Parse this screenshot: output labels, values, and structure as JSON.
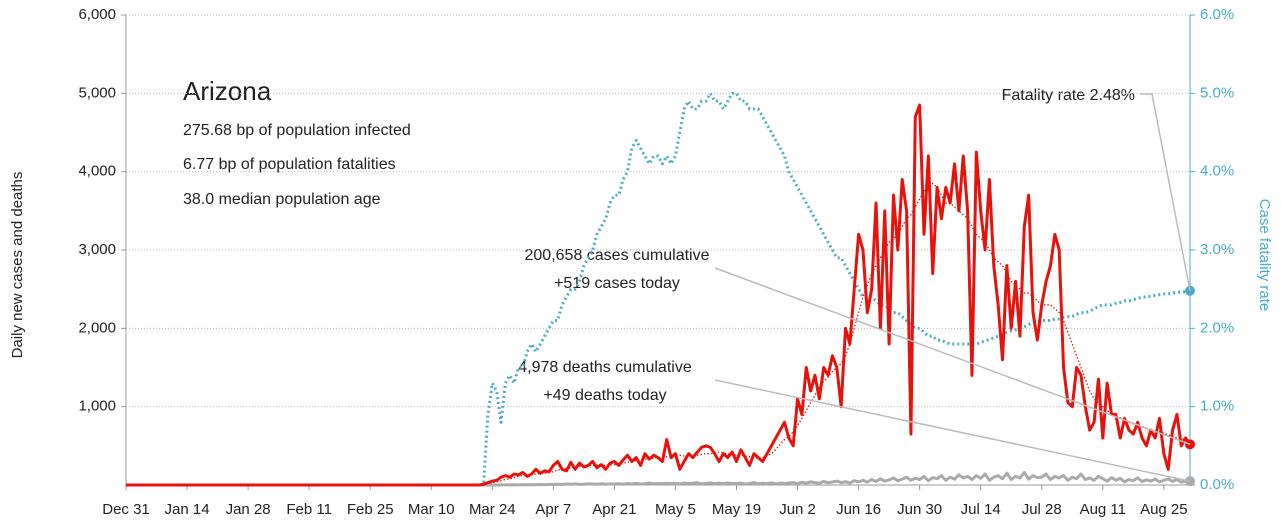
{
  "chart_data": {
    "type": "line",
    "ylabel": "Daily new cases and deaths",
    "y2label": "Case fatality rate",
    "info": {
      "title": "Arizona",
      "lines": [
        "275.68 bp of population infected",
        "6.77 bp of population fatalities",
        "38.0 median population age"
      ]
    },
    "annotations": {
      "cases": [
        "200,658 cases cumulative",
        "+519 cases today"
      ],
      "deaths": [
        "4,978 deaths cumulative",
        "+49 deaths today"
      ],
      "rate": "Fatality rate 2.48%"
    },
    "grid": true,
    "ylim": [
      0,
      6000
    ],
    "yticks": [
      {
        "value": 1000,
        "label": "1,000"
      },
      {
        "value": 2000,
        "label": "2,000"
      },
      {
        "value": 3000,
        "label": "3,000"
      },
      {
        "value": 4000,
        "label": "4,000"
      },
      {
        "value": 5000,
        "label": "5,000"
      },
      {
        "value": 6000,
        "label": "6,000"
      }
    ],
    "y2lim": [
      0,
      6
    ],
    "y2ticks": [
      {
        "value": 0,
        "label": "0.0%"
      },
      {
        "value": 1,
        "label": "1.0%"
      },
      {
        "value": 2,
        "label": "2.0%"
      },
      {
        "value": 3,
        "label": "3.0%"
      },
      {
        "value": 4,
        "label": "4.0%"
      },
      {
        "value": 5,
        "label": "5.0%"
      },
      {
        "value": 6,
        "label": "6.0%"
      }
    ],
    "y2color": "#4bacc6",
    "categories": [
      "Dec 31",
      null,
      null,
      null,
      null,
      null,
      null,
      null,
      null,
      null,
      null,
      null,
      null,
      null,
      "Jan 14",
      null,
      null,
      null,
      null,
      null,
      null,
      null,
      null,
      null,
      null,
      null,
      null,
      null,
      "Jan 28",
      null,
      null,
      null,
      null,
      null,
      null,
      null,
      null,
      null,
      null,
      null,
      null,
      null,
      "Feb 11",
      null,
      null,
      null,
      null,
      null,
      null,
      null,
      null,
      null,
      null,
      null,
      null,
      null,
      "Feb 25",
      null,
      null,
      null,
      null,
      null,
      null,
      null,
      null,
      null,
      null,
      null,
      null,
      null,
      "Mar 10",
      null,
      null,
      null,
      null,
      null,
      null,
      null,
      null,
      null,
      null,
      null,
      null,
      null,
      "Mar 24",
      null,
      null,
      null,
      null,
      null,
      null,
      null,
      null,
      null,
      null,
      null,
      null,
      null,
      "Apr 7",
      null,
      null,
      null,
      null,
      null,
      null,
      null,
      null,
      null,
      null,
      null,
      null,
      null,
      "Apr 21",
      null,
      null,
      null,
      null,
      null,
      null,
      null,
      null,
      null,
      null,
      null,
      null,
      null,
      "May 5",
      null,
      null,
      null,
      null,
      null,
      null,
      null,
      null,
      null,
      null,
      null,
      null,
      null,
      "May 19",
      null,
      null,
      null,
      null,
      null,
      null,
      null,
      null,
      null,
      null,
      null,
      null,
      null,
      "Jun 2",
      null,
      null,
      null,
      null,
      null,
      null,
      null,
      null,
      null,
      null,
      null,
      null,
      null,
      "Jun 16",
      null,
      null,
      null,
      null,
      null,
      null,
      null,
      null,
      null,
      null,
      null,
      null,
      null,
      "Jun 30",
      null,
      null,
      null,
      null,
      null,
      null,
      null,
      null,
      null,
      null,
      null,
      null,
      null,
      "Jul 14",
      null,
      null,
      null,
      null,
      null,
      null,
      null,
      null,
      null,
      null,
      null,
      null,
      null,
      "Jul 28",
      null,
      null,
      null,
      null,
      null,
      null,
      null,
      null,
      null,
      null,
      null,
      null,
      null,
      "Aug 11",
      null,
      null,
      null,
      null,
      null,
      null,
      null,
      null,
      null,
      null,
      null,
      null,
      null,
      "Aug 25",
      null,
      null,
      null,
      null,
      null,
      null
    ],
    "series": [
      {
        "color": "#4bacc6",
        "dash": "dotted",
        "bold": true,
        "axis": "y2",
        "end_marker": true,
        "values": [
          0,
          0,
          0,
          0,
          0,
          0,
          0,
          0,
          0,
          0,
          0,
          0,
          0,
          0,
          0,
          0,
          0,
          0,
          0,
          0,
          0,
          0,
          0,
          0,
          0,
          0,
          0,
          0,
          0,
          0,
          0,
          0,
          0,
          0,
          0,
          0,
          0,
          0,
          0,
          0,
          0,
          0,
          0,
          0,
          0,
          0,
          0,
          0,
          0,
          0,
          0,
          0,
          0,
          0,
          0,
          0,
          0,
          0,
          0,
          0,
          0,
          0,
          0,
          0,
          0,
          0,
          0,
          0,
          0,
          0,
          0,
          0,
          0,
          0,
          0,
          0,
          0,
          0,
          0,
          0,
          0,
          0,
          0.0,
          0.9,
          1.3,
          1.2,
          0.8,
          1.3,
          1.4,
          1.3,
          1.5,
          1.5,
          1.7,
          1.8,
          1.7,
          1.8,
          1.9,
          2.0,
          2.1,
          2.1,
          2.3,
          2.4,
          2.5,
          2.5,
          2.6,
          2.8,
          2.9,
          3.0,
          3.2,
          3.3,
          3.4,
          3.6,
          3.7,
          3.7,
          3.9,
          4.0,
          4.3,
          4.4,
          4.3,
          4.2,
          4.1,
          4.2,
          4.2,
          4.1,
          4.2,
          4.1,
          4.2,
          4.5,
          4.8,
          4.9,
          4.8,
          4.8,
          4.9,
          4.9,
          5.0,
          4.9,
          4.9,
          4.8,
          4.9,
          5.0,
          5.0,
          4.9,
          4.9,
          4.8,
          4.8,
          4.8,
          4.7,
          4.6,
          4.5,
          4.4,
          4.3,
          4.2,
          4.0,
          3.9,
          3.8,
          3.7,
          3.6,
          3.5,
          3.4,
          3.3,
          3.2,
          3.1,
          3.0,
          2.9,
          2.9,
          2.8,
          2.7,
          2.6,
          2.5,
          2.4,
          2.4,
          2.4,
          2.35,
          2.3,
          2.3,
          2.25,
          2.2,
          2.2,
          2.15,
          2.1,
          2.05,
          2.0,
          2.0,
          1.95,
          1.9,
          1.9,
          1.85,
          1.85,
          1.82,
          1.8,
          1.8,
          1.8,
          1.8,
          1.8,
          1.8,
          1.8,
          1.82,
          1.84,
          1.86,
          1.88,
          1.9,
          1.92,
          1.95,
          1.97,
          1.98,
          2.0,
          2.02,
          2.05,
          2.07,
          2.08,
          2.1,
          2.1,
          2.1,
          2.12,
          2.12,
          2.14,
          2.15,
          2.15,
          2.18,
          2.2,
          2.2,
          2.22,
          2.25,
          2.28,
          2.3,
          2.3,
          2.3,
          2.32,
          2.33,
          2.35,
          2.35,
          2.37,
          2.38,
          2.4,
          2.4,
          2.41,
          2.42,
          2.43,
          2.44,
          2.44,
          2.45,
          2.46,
          2.46,
          2.47,
          2.48
        ]
      },
      {
        "color": "#aaaaaa",
        "dash": "solid",
        "bold": true,
        "axis": "y",
        "end_marker": true,
        "values": [
          0,
          0,
          0,
          0,
          0,
          0,
          0,
          0,
          0,
          0,
          0,
          0,
          0,
          0,
          0,
          0,
          0,
          0,
          0,
          0,
          0,
          0,
          0,
          0,
          0,
          0,
          0,
          0,
          0,
          0,
          0,
          0,
          0,
          0,
          0,
          0,
          0,
          0,
          0,
          0,
          0,
          0,
          0,
          0,
          0,
          0,
          0,
          0,
          0,
          0,
          0,
          0,
          0,
          0,
          0,
          0,
          0,
          0,
          0,
          0,
          0,
          0,
          0,
          0,
          0,
          0,
          0,
          0,
          0,
          0,
          0,
          0,
          0,
          0,
          0,
          0,
          0,
          0,
          0,
          0,
          0,
          0,
          0,
          0,
          1,
          0,
          1,
          2,
          1,
          3,
          2,
          4,
          3,
          5,
          4,
          6,
          5,
          7,
          8,
          10,
          6,
          12,
          9,
          14,
          8,
          10,
          15,
          12,
          9,
          16,
          10,
          14,
          12,
          18,
          10,
          20,
          15,
          22,
          12,
          18,
          25,
          14,
          20,
          16,
          22,
          18,
          20,
          15,
          25,
          18,
          22,
          30,
          14,
          20,
          28,
          16,
          24,
          18,
          26,
          20,
          18,
          25,
          12,
          20,
          30,
          16,
          22,
          18,
          28,
          15,
          24,
          20,
          26,
          30,
          20,
          35,
          25,
          40,
          30,
          22,
          45,
          28,
          38,
          50,
          30,
          42,
          25,
          55,
          40,
          60,
          35,
          70,
          45,
          80,
          50,
          65,
          90,
          55,
          75,
          100,
          60,
          85,
          70,
          110,
          55,
          95,
          80,
          120,
          60,
          100,
          75,
          130,
          90,
          110,
          70,
          120,
          85,
          140,
          60,
          100,
          120,
          80,
          150,
          70,
          110,
          90,
          160,
          75,
          120,
          95,
          100,
          140,
          70,
          110,
          90,
          120,
          60,
          100,
          80,
          140,
          70,
          90,
          60,
          110,
          80,
          50,
          95,
          60,
          85,
          40,
          70,
          55,
          90,
          45,
          65,
          50,
          75,
          40,
          60,
          80,
          45,
          70,
          35,
          55,
          49
        ]
      },
      {
        "color": "#e8120c",
        "dash": "dotted",
        "bold": false,
        "axis": "y",
        "end_marker": false,
        "values": [
          0,
          0,
          0,
          0,
          0,
          0,
          0,
          0,
          0,
          0,
          0,
          0,
          0,
          0,
          0,
          0,
          0,
          0,
          0,
          0,
          0,
          0,
          0,
          0,
          0,
          0,
          0,
          0,
          0,
          0,
          0,
          0,
          0,
          0,
          0,
          0,
          0,
          0,
          0,
          0,
          0,
          0,
          0,
          0,
          0,
          0,
          0,
          0,
          0,
          0,
          0,
          0,
          0,
          0,
          0,
          0,
          0,
          0,
          0,
          0,
          0,
          0,
          0,
          0,
          0,
          0,
          0,
          0,
          0,
          0,
          0,
          0,
          0,
          0,
          0,
          0,
          0,
          0,
          0,
          0,
          0,
          0,
          10,
          20,
          30,
          40,
          55,
          70,
          80,
          95,
          110,
          120,
          125,
          130,
          140,
          145,
          150,
          155,
          170,
          190,
          200,
          210,
          220,
          230,
          240,
          245,
          245,
          250,
          250,
          250,
          250,
          255,
          260,
          270,
          280,
          290,
          300,
          310,
          320,
          330,
          340,
          340,
          350,
          350,
          360,
          370,
          380,
          380,
          370,
          370,
          370,
          380,
          390,
          400,
          400,
          410,
          420,
          410,
          400,
          390,
          380,
          380,
          370,
          360,
          350,
          340,
          350,
          370,
          400,
          450,
          520,
          580,
          620,
          680,
          760,
          850,
          950,
          1050,
          1150,
          1250,
          1320,
          1380,
          1450,
          1500,
          1550,
          1650,
          1800,
          2000,
          2200,
          2400,
          2550,
          2700,
          2800,
          2900,
          3000,
          3100,
          3150,
          3200,
          3300,
          3400,
          3450,
          3550,
          3650,
          3750,
          3800,
          3850,
          3800,
          3700,
          3600,
          3600,
          3550,
          3500,
          3450,
          3400,
          3300,
          3200,
          3150,
          3100,
          3000,
          2900,
          2850,
          2800,
          2700,
          2600,
          2550,
          2500,
          2450,
          2450,
          2400,
          2350,
          2300,
          2300,
          2300,
          2250,
          2200,
          2100,
          1950,
          1800,
          1650,
          1500,
          1350,
          1200,
          1100,
          1050,
          1000,
          950,
          900,
          880,
          860,
          830,
          800,
          780,
          760,
          740,
          720,
          700,
          690,
          680,
          660,
          640,
          620,
          600,
          590,
          580,
          570
        ]
      },
      {
        "color": "#e8120c",
        "dash": "solid",
        "bold": true,
        "axis": "y",
        "end_marker": true,
        "values": [
          0,
          0,
          0,
          0,
          0,
          0,
          0,
          0,
          0,
          0,
          0,
          0,
          0,
          0,
          0,
          0,
          0,
          0,
          0,
          0,
          0,
          0,
          0,
          0,
          0,
          0,
          0,
          0,
          0,
          0,
          0,
          0,
          0,
          0,
          0,
          0,
          0,
          0,
          0,
          0,
          0,
          0,
          0,
          0,
          0,
          0,
          0,
          0,
          0,
          0,
          0,
          0,
          0,
          0,
          0,
          0,
          0,
          0,
          0,
          0,
          0,
          0,
          0,
          0,
          0,
          0,
          0,
          0,
          0,
          0,
          0,
          0,
          0,
          0,
          0,
          0,
          0,
          0,
          0,
          0,
          0,
          0,
          10,
          30,
          50,
          60,
          100,
          120,
          100,
          140,
          130,
          160,
          110,
          140,
          200,
          150,
          180,
          170,
          250,
          300,
          200,
          180,
          290,
          200,
          280,
          230,
          250,
          300,
          220,
          260,
          200,
          280,
          300,
          250,
          320,
          380,
          300,
          350,
          250,
          400,
          330,
          380,
          350,
          300,
          580,
          350,
          400,
          200,
          300,
          400,
          350,
          420,
          480,
          500,
          480,
          400,
          300,
          400,
          350,
          420,
          300,
          450,
          350,
          250,
          400,
          350,
          300,
          400,
          500,
          600,
          700,
          800,
          600,
          500,
          1100,
          900,
          1500,
          1200,
          1400,
          1100,
          1500,
          1400,
          1650,
          1500,
          1000,
          2000,
          1800,
          2500,
          3200,
          3000,
          2200,
          2500,
          3600,
          2000,
          3500,
          1800,
          3700,
          3000,
          3900,
          3500,
          650,
          4700,
          4850,
          3200,
          4200,
          2700,
          3800,
          3400,
          3800,
          3600,
          4100,
          3500,
          4200,
          3500,
          1400,
          4250,
          3500,
          3000,
          3900,
          2800,
          2300,
          1600,
          2800,
          2000,
          2600,
          1900,
          3300,
          3700,
          2200,
          1850,
          2300,
          2600,
          2800,
          3200,
          3000,
          1500,
          1050,
          1000,
          1500,
          1400,
          1000,
          700,
          800,
          1350,
          600,
          1300,
          900,
          900,
          600,
          850,
          700,
          650,
          800,
          600,
          500,
          700,
          600,
          850,
          400,
          200,
          700,
          900,
          500,
          600,
          519
        ]
      }
    ]
  }
}
